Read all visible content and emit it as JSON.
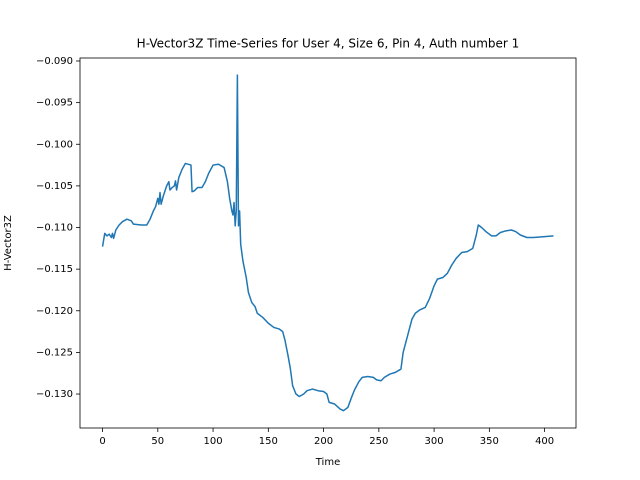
{
  "chart_data": {
    "type": "line",
    "title": "H-Vector3Z Time-Series for User 4, Size 6, Pin 4, Auth number 1",
    "xlabel": "Time",
    "ylabel": "H-Vector3Z",
    "color": "#1f77b4",
    "x": [
      0,
      2,
      4,
      6,
      8,
      9,
      10,
      12,
      15,
      18,
      22,
      26,
      28,
      35,
      40,
      43,
      46,
      48,
      50,
      51,
      52,
      53,
      55,
      58,
      60,
      61,
      63,
      65,
      66,
      67,
      69,
      72,
      75,
      80,
      81,
      83,
      86,
      90,
      93,
      96,
      100,
      105,
      110,
      113,
      115,
      117,
      118,
      119,
      120,
      121,
      122,
      123,
      124,
      125,
      127,
      130,
      132,
      135,
      138,
      140,
      145,
      150,
      155,
      160,
      163,
      165,
      168,
      170,
      172,
      175,
      178,
      182,
      185,
      190,
      195,
      200,
      203,
      205,
      210,
      215,
      218,
      222,
      225,
      228,
      232,
      235,
      240,
      245,
      248,
      252,
      255,
      260,
      265,
      270,
      272,
      274,
      277,
      280,
      283,
      287,
      292,
      296,
      300,
      303,
      308,
      312,
      316,
      320,
      325,
      330,
      335,
      338,
      340,
      343,
      347,
      352,
      356,
      360,
      365,
      370,
      374,
      378,
      384,
      390,
      400,
      408
    ],
    "values": [
      -0.1123,
      -0.1107,
      -0.111,
      -0.1108,
      -0.1112,
      -0.1107,
      -0.1113,
      -0.1103,
      -0.1097,
      -0.1093,
      -0.109,
      -0.1092,
      -0.1096,
      -0.1097,
      -0.1097,
      -0.109,
      -0.108,
      -0.1075,
      -0.1065,
      -0.1072,
      -0.1058,
      -0.1072,
      -0.1062,
      -0.105,
      -0.1045,
      -0.1055,
      -0.1052,
      -0.105,
      -0.1044,
      -0.1055,
      -0.104,
      -0.103,
      -0.1023,
      -0.1025,
      -0.1057,
      -0.1056,
      -0.1052,
      -0.1052,
      -0.1045,
      -0.1035,
      -0.1025,
      -0.1024,
      -0.1028,
      -0.1045,
      -0.1065,
      -0.108,
      -0.1085,
      -0.107,
      -0.1098,
      -0.108,
      -0.0917,
      -0.1098,
      -0.108,
      -0.112,
      -0.114,
      -0.116,
      -0.1178,
      -0.119,
      -0.1195,
      -0.1203,
      -0.1208,
      -0.1215,
      -0.122,
      -0.1222,
      -0.1225,
      -0.1235,
      -0.1255,
      -0.127,
      -0.129,
      -0.13,
      -0.1303,
      -0.13,
      -0.1296,
      -0.1294,
      -0.1296,
      -0.1297,
      -0.13,
      -0.131,
      -0.1312,
      -0.1318,
      -0.132,
      -0.1316,
      -0.1305,
      -0.1295,
      -0.1285,
      -0.128,
      -0.1279,
      -0.128,
      -0.1283,
      -0.1284,
      -0.128,
      -0.1276,
      -0.1274,
      -0.127,
      -0.125,
      -0.124,
      -0.1225,
      -0.121,
      -0.1203,
      -0.1199,
      -0.1196,
      -0.1185,
      -0.117,
      -0.1162,
      -0.116,
      -0.1155,
      -0.1145,
      -0.1137,
      -0.113,
      -0.1129,
      -0.1125,
      -0.111,
      -0.1097,
      -0.11,
      -0.1105,
      -0.111,
      -0.111,
      -0.1106,
      -0.1104,
      -0.1103,
      -0.1105,
      -0.1109,
      -0.1112,
      -0.1112,
      -0.1111,
      -0.111
    ],
    "xlim": [
      -20.4,
      428.4
    ],
    "ylim": [
      -0.13408,
      -0.08964
    ],
    "xticks": [
      0,
      50,
      100,
      150,
      200,
      250,
      300,
      350,
      400
    ],
    "yticks": [
      {
        "value": -0.13,
        "label": "−0.130"
      },
      {
        "value": -0.125,
        "label": "−0.125"
      },
      {
        "value": -0.12,
        "label": "−0.120"
      },
      {
        "value": -0.115,
        "label": "−0.115"
      },
      {
        "value": -0.11,
        "label": "−0.110"
      },
      {
        "value": -0.105,
        "label": "−0.105"
      },
      {
        "value": -0.1,
        "label": "−0.100"
      },
      {
        "value": -0.095,
        "label": "−0.095"
      },
      {
        "value": -0.09,
        "label": "−0.090"
      }
    ]
  }
}
